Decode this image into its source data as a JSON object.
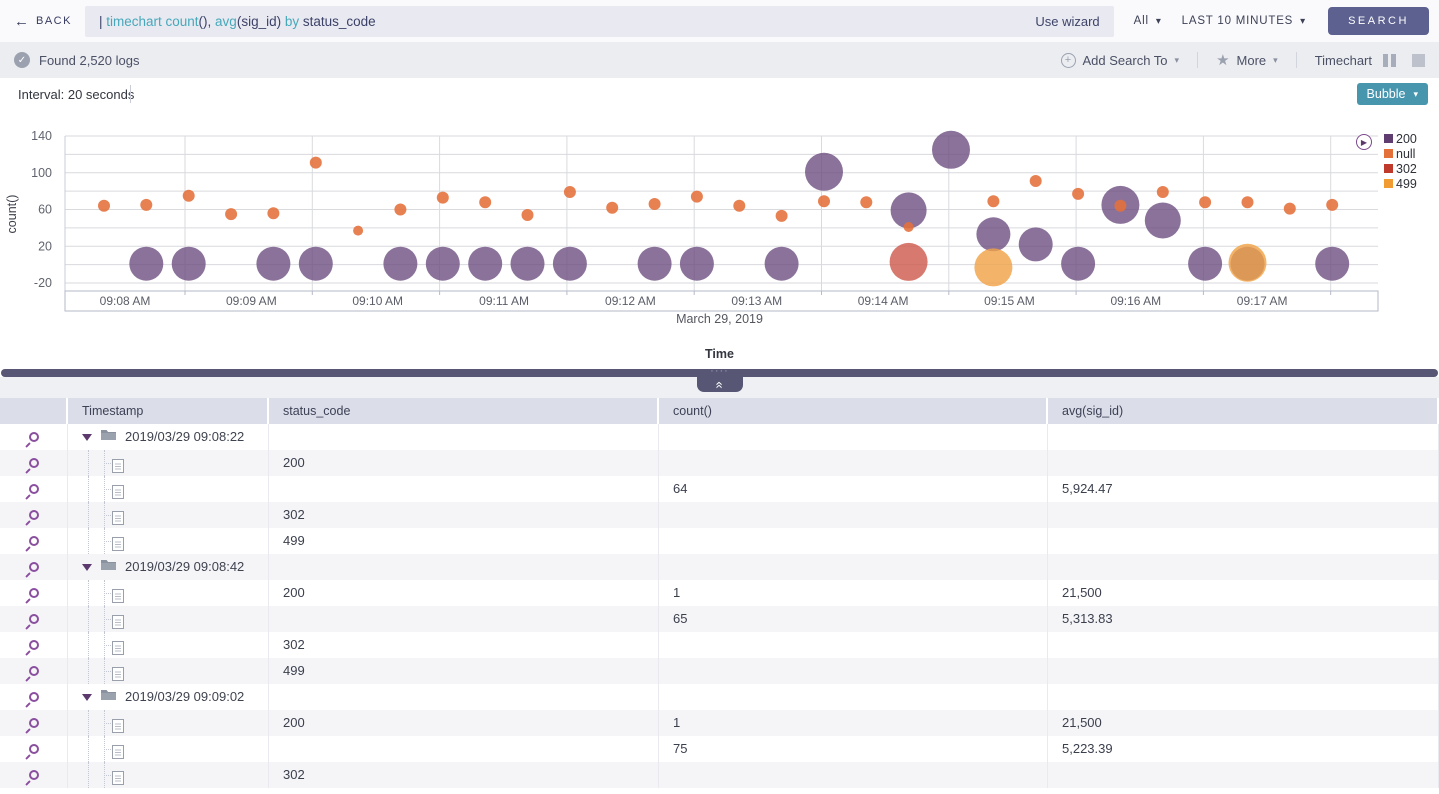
{
  "icons": {
    "back": "←",
    "caret_down": "▾",
    "check": "✓",
    "add": "+",
    "star": "★",
    "play": "▶",
    "collapse_up": "«",
    "dots": "····"
  },
  "query_bar": {
    "back_label": "BACK",
    "query_tokens": [
      {
        "text": "| ",
        "style": "plain"
      },
      {
        "text": "timechart ",
        "style": "keyword"
      },
      {
        "text": "count",
        "style": "keyword"
      },
      {
        "text": "(), ",
        "style": "plain"
      },
      {
        "text": "avg",
        "style": "keyword"
      },
      {
        "text": "(sig_id) ",
        "style": "plain"
      },
      {
        "text": "by ",
        "style": "keyword"
      },
      {
        "text": "status_code",
        "style": "plain"
      }
    ],
    "use_wizard": "Use wizard",
    "scope": "All",
    "time_range": "LAST 10 MINUTES",
    "search_label": "SEARCH"
  },
  "status_bar": {
    "found": "Found 2,520 logs",
    "add_search_to": "Add Search To",
    "more": "More",
    "view_label": "Timechart"
  },
  "chart_panel": {
    "interval": "Interval: 20 seconds",
    "chart_type_button": "Bubble",
    "date_label": "March 29, 2019",
    "time_axis_title": "Time",
    "y_axis_title": "count()"
  },
  "chart_data": {
    "type": "scatter",
    "subtype": "bubble",
    "title": "timechart count(), avg(sig_id) by status_code",
    "xlabel": "Time",
    "ylabel": "count()",
    "interval_seconds": 20,
    "y_ticks": [
      140,
      100,
      60,
      20,
      -20
    ],
    "grid": true,
    "x_tick_labels": [
      "09:08 AM",
      "09:09 AM",
      "09:10 AM",
      "09:11 AM",
      "09:12 AM",
      "09:13 AM",
      "09:14 AM",
      "09:15 AM",
      "09:16 AM",
      "09:17 AM"
    ],
    "legend_position": "right",
    "legend": [
      {
        "label": "200",
        "color": "#5f3d71"
      },
      {
        "label": "null",
        "color": "#e4703a"
      },
      {
        "label": "302",
        "color": "#c03a2b"
      },
      {
        "label": "499",
        "color": "#f09c32"
      }
    ],
    "series": [
      {
        "name": "200",
        "color": "#6a4a7d",
        "opacity": 0.78,
        "points": [
          {
            "i": 1,
            "t": "09:08:42",
            "count": 1,
            "r": 17
          },
          {
            "i": 2,
            "t": "09:09:02",
            "count": 1,
            "r": 17
          },
          {
            "i": 4,
            "t": "09:09:42",
            "count": 1,
            "r": 17
          },
          {
            "i": 5,
            "t": "09:10:02",
            "count": 1,
            "r": 17
          },
          {
            "i": 7,
            "t": "09:10:42",
            "count": 1,
            "r": 17
          },
          {
            "i": 8,
            "t": "09:11:02",
            "count": 1,
            "r": 17
          },
          {
            "i": 9,
            "t": "09:11:22",
            "count": 1,
            "r": 17
          },
          {
            "i": 10,
            "t": "09:11:42",
            "count": 1,
            "r": 17
          },
          {
            "i": 11,
            "t": "09:12:02",
            "count": 1,
            "r": 17
          },
          {
            "i": 13,
            "t": "09:12:42",
            "count": 1,
            "r": 17
          },
          {
            "i": 14,
            "t": "09:13:02",
            "count": 1,
            "r": 17
          },
          {
            "i": 16,
            "t": "09:13:42",
            "count": 1,
            "r": 17
          },
          {
            "i": 17,
            "t": "09:14:02",
            "count": 101,
            "r": 19
          },
          {
            "i": 19,
            "t": "09:14:42",
            "count": 59,
            "r": 18
          },
          {
            "i": 20,
            "t": "09:15:02",
            "count": 125,
            "r": 19
          },
          {
            "i": 21,
            "t": "09:15:22",
            "count": 33,
            "r": 17
          },
          {
            "i": 22,
            "t": "09:15:42",
            "count": 22,
            "r": 17
          },
          {
            "i": 23,
            "t": "09:16:02",
            "count": 1,
            "r": 17
          },
          {
            "i": 24,
            "t": "09:16:22",
            "count": 65,
            "r": 19
          },
          {
            "i": 25,
            "t": "09:16:42",
            "count": 48,
            "r": 18
          },
          {
            "i": 26,
            "t": "09:17:02",
            "count": 1,
            "r": 17
          },
          {
            "i": 27,
            "t": "09:17:22",
            "count": 1,
            "r": 17
          },
          {
            "i": 29,
            "t": "09:18:02",
            "count": 1,
            "r": 17
          }
        ]
      },
      {
        "name": "302",
        "color": "#cd584a",
        "opacity": 0.8,
        "points": [
          {
            "i": 19,
            "t": "09:14:42",
            "count": 3,
            "r": 19
          }
        ]
      },
      {
        "name": "499",
        "color": "#f0a145",
        "opacity": 0.8,
        "points": [
          {
            "i": 21,
            "t": "09:15:22",
            "count": -3,
            "r": 19
          },
          {
            "i": 27,
            "t": "09:17:22",
            "count": 2,
            "r": 19
          }
        ]
      },
      {
        "name": "null",
        "color": "#e4703a",
        "opacity": 0.88,
        "points": [
          {
            "i": 0,
            "t": "09:08:22",
            "count": 64,
            "r": 6
          },
          {
            "i": 1,
            "t": "09:08:42",
            "count": 65,
            "r": 6
          },
          {
            "i": 2,
            "t": "09:09:02",
            "count": 75,
            "r": 6
          },
          {
            "i": 3,
            "t": "09:09:22",
            "count": 55,
            "r": 6
          },
          {
            "i": 4,
            "t": "09:09:42",
            "count": 56,
            "r": 6
          },
          {
            "i": 5,
            "t": "09:10:02",
            "count": 111,
            "r": 6
          },
          {
            "i": 6,
            "t": "09:10:22",
            "count": 37,
            "r": 5
          },
          {
            "i": 7,
            "t": "09:10:42",
            "count": 60,
            "r": 6
          },
          {
            "i": 8,
            "t": "09:11:02",
            "count": 73,
            "r": 6
          },
          {
            "i": 9,
            "t": "09:11:22",
            "count": 68,
            "r": 6
          },
          {
            "i": 10,
            "t": "09:11:42",
            "count": 54,
            "r": 6
          },
          {
            "i": 11,
            "t": "09:12:02",
            "count": 79,
            "r": 6
          },
          {
            "i": 12,
            "t": "09:12:22",
            "count": 62,
            "r": 6
          },
          {
            "i": 13,
            "t": "09:12:42",
            "count": 66,
            "r": 6
          },
          {
            "i": 14,
            "t": "09:13:02",
            "count": 74,
            "r": 6
          },
          {
            "i": 15,
            "t": "09:13:22",
            "count": 64,
            "r": 6
          },
          {
            "i": 16,
            "t": "09:13:42",
            "count": 53,
            "r": 6
          },
          {
            "i": 17,
            "t": "09:14:02",
            "count": 69,
            "r": 6
          },
          {
            "i": 18,
            "t": "09:14:22",
            "count": 68,
            "r": 6
          },
          {
            "i": 19,
            "t": "09:14:42",
            "count": 41,
            "r": 5
          },
          {
            "i": 21,
            "t": "09:15:22",
            "count": 69,
            "r": 6
          },
          {
            "i": 22,
            "t": "09:15:42",
            "count": 91,
            "r": 6
          },
          {
            "i": 23,
            "t": "09:16:02",
            "count": 77,
            "r": 6
          },
          {
            "i": 24,
            "t": "09:16:22",
            "count": 64,
            "r": 6
          },
          {
            "i": 25,
            "t": "09:16:42",
            "count": 79,
            "r": 6
          },
          {
            "i": 26,
            "t": "09:17:02",
            "count": 68,
            "r": 6
          },
          {
            "i": 27,
            "t": "09:17:22",
            "count": 68,
            "r": 6
          },
          {
            "i": 28,
            "t": "09:17:42",
            "count": 61,
            "r": 6
          },
          {
            "i": 29,
            "t": "09:18:02",
            "count": 65,
            "r": 6
          }
        ]
      }
    ]
  },
  "table": {
    "columns": [
      "",
      "Timestamp",
      "status_code",
      "count()",
      "avg(sig_id)"
    ],
    "rows": [
      {
        "kind": "group",
        "timestamp": "2019/03/29 09:08:22",
        "status_code": "",
        "count": "",
        "avg": ""
      },
      {
        "kind": "leaf",
        "timestamp": "",
        "status_code": "200",
        "count": "",
        "avg": ""
      },
      {
        "kind": "leaf",
        "timestamp": "",
        "status_code": "",
        "count": "64",
        "avg": "5,924.47"
      },
      {
        "kind": "leaf",
        "timestamp": "",
        "status_code": "302",
        "count": "",
        "avg": ""
      },
      {
        "kind": "leaf",
        "timestamp": "",
        "status_code": "499",
        "count": "",
        "avg": ""
      },
      {
        "kind": "group",
        "timestamp": "2019/03/29 09:08:42",
        "status_code": "",
        "count": "",
        "avg": ""
      },
      {
        "kind": "leaf",
        "timestamp": "",
        "status_code": "200",
        "count": "1",
        "avg": "21,500"
      },
      {
        "kind": "leaf",
        "timestamp": "",
        "status_code": "",
        "count": "65",
        "avg": "5,313.83"
      },
      {
        "kind": "leaf",
        "timestamp": "",
        "status_code": "302",
        "count": "",
        "avg": ""
      },
      {
        "kind": "leaf",
        "timestamp": "",
        "status_code": "499",
        "count": "",
        "avg": ""
      },
      {
        "kind": "group",
        "timestamp": "2019/03/29 09:09:02",
        "status_code": "",
        "count": "",
        "avg": ""
      },
      {
        "kind": "leaf",
        "timestamp": "",
        "status_code": "200",
        "count": "1",
        "avg": "21,500"
      },
      {
        "kind": "leaf",
        "timestamp": "",
        "status_code": "",
        "count": "75",
        "avg": "5,223.39"
      },
      {
        "kind": "leaf",
        "timestamp": "",
        "status_code": "302",
        "count": "",
        "avg": ""
      }
    ]
  }
}
